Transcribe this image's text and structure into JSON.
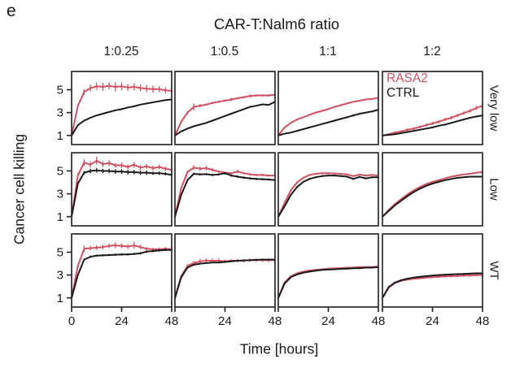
{
  "figure": {
    "panel_label": "e"
  },
  "chart_data": {
    "type": "line",
    "title": "CAR-T:Nalm6 ratio",
    "xlabel": "Time [hours]",
    "ylabel": "Cancer cell killing",
    "columns": [
      "1:0.25",
      "1:0.5",
      "1:1",
      "1:2"
    ],
    "rows": [
      "Very low",
      "Low",
      "WT"
    ],
    "legend": [
      {
        "name": "RASA2",
        "color": "#d05062"
      },
      {
        "name": "CTRL",
        "color": "#1a1a1a"
      }
    ],
    "legend_position": "inside top-right panel (row Very low, col 1:2)",
    "x_ticks": [
      0,
      24,
      48
    ],
    "y_ticks": [
      1,
      3,
      5
    ],
    "xlim": [
      0,
      48
    ],
    "ylim": [
      0.2,
      6.6
    ],
    "grid": false,
    "x": [
      0,
      3,
      6,
      9,
      12,
      15,
      18,
      21,
      24,
      27,
      30,
      33,
      36,
      39,
      42,
      45,
      48
    ],
    "panels": [
      {
        "row": "Very low",
        "col": "1:0.25",
        "rasa2": [
          1.0,
          3.6,
          4.8,
          5.15,
          5.3,
          5.25,
          5.35,
          5.25,
          5.3,
          5.2,
          5.25,
          5.15,
          5.1,
          5.05,
          5.05,
          4.95,
          4.9
        ],
        "rasa2_err": [
          0,
          0.15,
          0.25,
          0.3,
          0.3,
          0.35,
          0.3,
          0.4,
          0.35,
          0.3,
          0.3,
          0.3,
          0.3,
          0.3,
          0.25,
          0.25,
          0.25
        ],
        "ctrl": [
          1.0,
          1.9,
          2.3,
          2.55,
          2.75,
          2.9,
          3.05,
          3.2,
          3.3,
          3.45,
          3.55,
          3.7,
          3.8,
          3.9,
          4.0,
          4.1,
          4.15
        ],
        "ctrl_err": 0.05
      },
      {
        "row": "Very low",
        "col": "1:0.5",
        "rasa2": [
          1.0,
          2.2,
          3.0,
          3.5,
          3.6,
          3.7,
          3.85,
          3.95,
          4.05,
          4.15,
          4.25,
          4.35,
          4.45,
          4.5,
          4.5,
          4.5,
          4.55
        ],
        "rasa2_err": [
          0,
          0.1,
          0.15,
          0.3,
          0.15,
          0.1,
          0.1,
          0.1,
          0.1,
          0.15,
          0.1,
          0.1,
          0.15,
          0.1,
          0.1,
          0.1,
          0.1
        ],
        "ctrl": [
          1.0,
          1.35,
          1.6,
          1.8,
          1.95,
          2.1,
          2.3,
          2.5,
          2.7,
          2.9,
          3.1,
          3.3,
          3.5,
          3.6,
          3.72,
          3.68,
          3.95
        ],
        "ctrl_err": 0.05
      },
      {
        "row": "Very low",
        "col": "1:1",
        "rasa2": [
          1.0,
          1.7,
          2.1,
          2.4,
          2.6,
          2.8,
          3.0,
          3.15,
          3.3,
          3.5,
          3.65,
          3.8,
          3.95,
          4.05,
          4.15,
          4.2,
          4.3
        ],
        "rasa2_err": 0.04,
        "ctrl": [
          1.0,
          1.15,
          1.25,
          1.4,
          1.55,
          1.7,
          1.85,
          2.0,
          2.15,
          2.3,
          2.45,
          2.6,
          2.75,
          2.9,
          3.0,
          3.1,
          3.25
        ],
        "ctrl_err": [
          0,
          0,
          0,
          0,
          0,
          0,
          0,
          0.05,
          0.05,
          0.08,
          0.08,
          0.08,
          0.1,
          0.08,
          0.08,
          0.08,
          0.08
        ]
      },
      {
        "row": "Very low",
        "col": "1:2",
        "rasa2": [
          1.0,
          1.1,
          1.25,
          1.35,
          1.5,
          1.6,
          1.75,
          1.9,
          2.05,
          2.2,
          2.4,
          2.55,
          2.75,
          2.95,
          3.15,
          3.4,
          3.6
        ],
        "rasa2_err": [
          0,
          0.08,
          0.1,
          0.1,
          0.12,
          0.12,
          0.12,
          0.12,
          0.15,
          0.15,
          0.15,
          0.15,
          0.15,
          0.15,
          0.15,
          0.18,
          0.2
        ],
        "ctrl": [
          1.0,
          1.05,
          1.1,
          1.2,
          1.3,
          1.4,
          1.5,
          1.6,
          1.7,
          1.85,
          1.95,
          2.1,
          2.25,
          2.4,
          2.55,
          2.65,
          2.75
        ],
        "ctrl_err": 0.04
      },
      {
        "row": "Low",
        "col": "1:0.25",
        "rasa2": [
          1.0,
          4.6,
          5.75,
          5.55,
          5.9,
          5.6,
          5.7,
          5.5,
          5.5,
          5.35,
          5.55,
          5.3,
          5.4,
          5.25,
          5.35,
          5.2,
          5.1
        ],
        "rasa2_err": [
          0,
          0.2,
          0.3,
          0.25,
          0.35,
          0.25,
          0.25,
          0.2,
          0.25,
          0.2,
          0.25,
          0.2,
          0.2,
          0.2,
          0.2,
          0.2,
          0.2
        ],
        "ctrl": [
          1.0,
          3.9,
          4.85,
          5.0,
          5.05,
          5.0,
          5.0,
          4.95,
          4.95,
          4.9,
          4.9,
          4.85,
          4.85,
          4.8,
          4.8,
          4.75,
          4.65
        ],
        "ctrl_err": [
          0,
          0.1,
          0.15,
          0.2,
          0.2,
          0.2,
          0.2,
          0.2,
          0.2,
          0.2,
          0.2,
          0.2,
          0.2,
          0.15,
          0.15,
          0.15,
          0.15
        ]
      },
      {
        "row": "Low",
        "col": "1:0.5",
        "rasa2": [
          1.0,
          3.5,
          4.9,
          5.3,
          5.2,
          5.25,
          5.1,
          4.95,
          4.85,
          4.8,
          4.95,
          4.8,
          4.7,
          4.65,
          4.65,
          4.6,
          4.6
        ],
        "rasa2_err": [
          0,
          0.1,
          0.15,
          0.2,
          0.2,
          0.2,
          0.15,
          0.1,
          0.1,
          0.1,
          0.15,
          0.1,
          0.1,
          0.1,
          0.12,
          0.1,
          0.1
        ],
        "ctrl": [
          1.0,
          2.9,
          4.2,
          4.75,
          4.7,
          4.72,
          4.65,
          4.7,
          4.8,
          4.6,
          4.5,
          4.42,
          4.35,
          4.3,
          4.28,
          4.25,
          4.2
        ],
        "ctrl_err": 0.1
      },
      {
        "row": "Low",
        "col": "1:1",
        "rasa2": [
          1.0,
          2.2,
          3.3,
          4.0,
          4.4,
          4.65,
          4.75,
          4.8,
          4.8,
          4.78,
          4.75,
          4.7,
          4.55,
          4.68,
          4.6,
          4.65,
          4.6
        ],
        "rasa2_err": 0.08,
        "ctrl": [
          1.0,
          1.9,
          2.9,
          3.6,
          4.05,
          4.3,
          4.45,
          4.55,
          4.6,
          4.6,
          4.55,
          4.5,
          4.3,
          4.48,
          4.35,
          4.45,
          4.45
        ],
        "ctrl_err": 0.08
      },
      {
        "row": "Low",
        "col": "1:2",
        "rasa2": [
          1.0,
          1.6,
          2.1,
          2.55,
          2.95,
          3.3,
          3.6,
          3.85,
          4.05,
          4.2,
          4.35,
          4.5,
          4.6,
          4.7,
          4.75,
          4.85,
          4.9
        ],
        "rasa2_err": 0.05,
        "ctrl": [
          1.0,
          1.5,
          2.0,
          2.4,
          2.8,
          3.15,
          3.45,
          3.7,
          3.9,
          4.05,
          4.2,
          4.3,
          4.4,
          4.45,
          4.5,
          4.5,
          4.5
        ],
        "ctrl_err": 0.05
      },
      {
        "row": "WT",
        "col": "1:0.25",
        "rasa2": [
          1.0,
          3.8,
          5.3,
          5.35,
          5.4,
          5.45,
          5.55,
          5.6,
          5.55,
          5.5,
          5.6,
          5.45,
          5.3,
          5.25,
          5.25,
          5.3,
          5.25
        ],
        "rasa2_err": [
          0,
          0.15,
          0.3,
          0.2,
          0.2,
          0.2,
          0.2,
          0.25,
          0.2,
          0.2,
          0.3,
          0.2,
          0.15,
          0.15,
          0.15,
          0.15,
          0.2
        ],
        "ctrl": [
          1.0,
          3.0,
          4.35,
          4.6,
          4.7,
          4.72,
          4.75,
          4.78,
          4.8,
          4.8,
          4.85,
          4.9,
          5.05,
          5.1,
          5.15,
          5.2,
          5.2
        ],
        "ctrl_err": 0.1
      },
      {
        "row": "WT",
        "col": "1:0.5",
        "rasa2": [
          1.0,
          2.9,
          3.8,
          4.05,
          4.2,
          4.25,
          4.25,
          4.25,
          4.2,
          4.25,
          4.25,
          4.25,
          4.3,
          4.3,
          4.3,
          4.3,
          4.3
        ],
        "rasa2_err": [
          0,
          0.1,
          0.15,
          0.2,
          0.2,
          0.2,
          0.2,
          0.2,
          0.15,
          0.15,
          0.15,
          0.15,
          0.15,
          0.15,
          0.15,
          0.15,
          0.15
        ],
        "ctrl": [
          1.0,
          2.8,
          3.65,
          3.9,
          4.0,
          4.05,
          4.1,
          4.1,
          4.15,
          4.2,
          4.25,
          4.28,
          4.3,
          4.33,
          4.35,
          4.35,
          4.35
        ],
        "ctrl_err": 0.05
      },
      {
        "row": "WT",
        "col": "1:1",
        "rasa2": [
          1.0,
          2.35,
          2.9,
          3.15,
          3.3,
          3.4,
          3.45,
          3.5,
          3.55,
          3.6,
          3.6,
          3.65,
          3.65,
          3.7,
          3.7,
          3.7,
          3.75
        ],
        "rasa2_err": 0.06,
        "ctrl": [
          1.0,
          2.25,
          2.8,
          3.05,
          3.2,
          3.3,
          3.38,
          3.45,
          3.48,
          3.5,
          3.55,
          3.55,
          3.6,
          3.6,
          3.65,
          3.65,
          3.7
        ],
        "ctrl_err": 0.06
      },
      {
        "row": "WT",
        "col": "1:2",
        "rasa2": [
          1.0,
          1.9,
          2.3,
          2.5,
          2.6,
          2.68,
          2.72,
          2.78,
          2.82,
          2.85,
          2.88,
          2.9,
          2.92,
          2.95,
          2.95,
          3.0,
          3.0
        ],
        "rasa2_err": [
          0,
          0.05,
          0.05,
          0.08,
          0.08,
          0.08,
          0.08,
          0.08,
          0.08,
          0.1,
          0.1,
          0.1,
          0.1,
          0.1,
          0.1,
          0.12,
          0.15
        ],
        "ctrl": [
          1.0,
          1.95,
          2.35,
          2.55,
          2.68,
          2.78,
          2.85,
          2.9,
          2.95,
          3.0,
          3.02,
          3.05,
          3.08,
          3.1,
          3.12,
          3.15,
          3.15
        ],
        "ctrl_err": [
          0,
          0.05,
          0.05,
          0.05,
          0.05,
          0.05,
          0.05,
          0.05,
          0.08,
          0.08,
          0.08,
          0.08,
          0.08,
          0.08,
          0.08,
          0.08,
          0.1
        ]
      }
    ]
  }
}
